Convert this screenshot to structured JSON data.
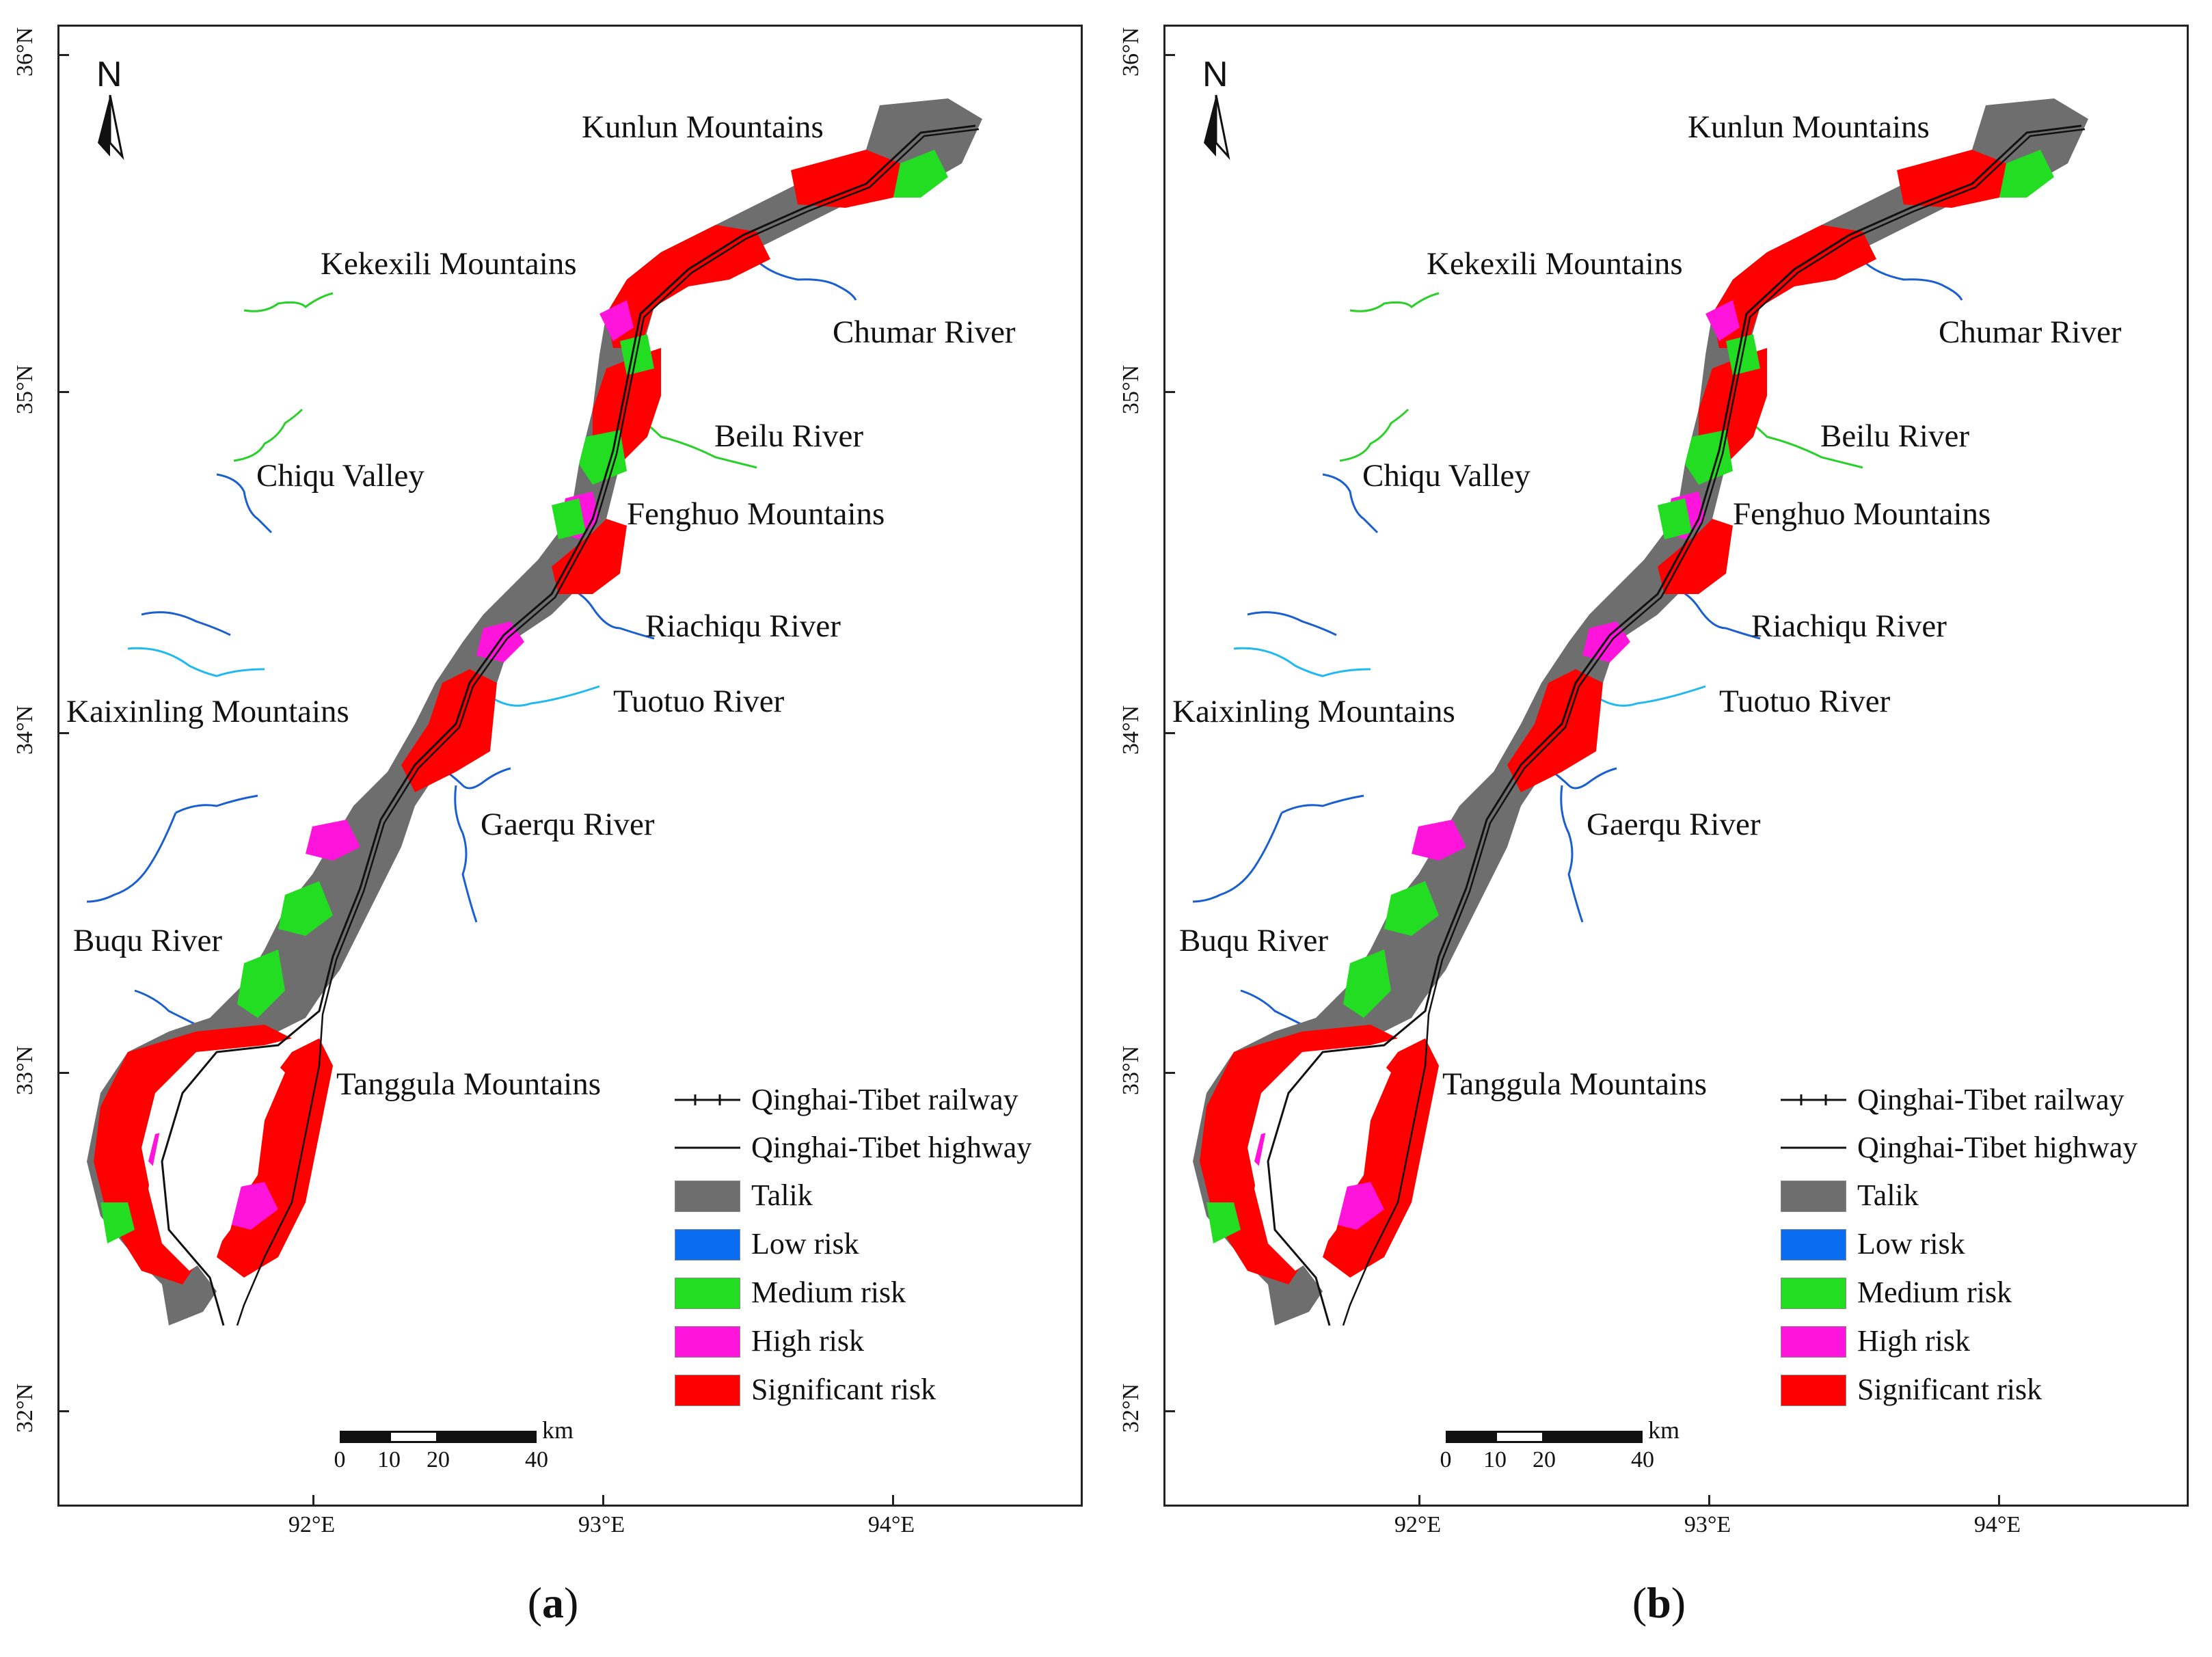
{
  "latitude_labels": [
    "36°N",
    "35°N",
    "34°N",
    "33°N",
    "32°N"
  ],
  "longitude_labels": [
    "92°E",
    "93°E",
    "94°E"
  ],
  "north_arrow": {
    "letter": "N",
    "icon": "north-arrow-icon"
  },
  "place_labels": {
    "kunlun": "Kunlun Mountains",
    "kekexili": "Kekexili Mountains",
    "chumar": "Chumar River",
    "beilu": "Beilu River",
    "chiqu": "Chiqu Valley",
    "fenghuo": "Fenghuo Mountains",
    "riachiqu": "Riachiqu River",
    "tuotuo": "Tuotuo River",
    "kaixinling": "Kaixinling Mountains",
    "gaerqu": "Gaerqu River",
    "buqu": "Buqu River",
    "tanggula": "Tanggula Mountains"
  },
  "legend": {
    "railway": "Qinghai-Tibet railway",
    "highway": "Qinghai-Tibet highway",
    "items": [
      {
        "label": "Talik",
        "color": "#6e6e6e"
      },
      {
        "label": "Low risk",
        "color": "#0a6cf0"
      },
      {
        "label": "Medium risk",
        "color": "#22dd22"
      },
      {
        "label": "High risk",
        "color": "#ff14dc"
      },
      {
        "label": "Significant risk",
        "color": "#ff0000"
      }
    ]
  },
  "scale_bar": {
    "ticks": [
      "0",
      "10",
      "20",
      "40"
    ],
    "unit": "km"
  },
  "panels": [
    {
      "id": "a",
      "open": "(",
      "letter": "a",
      "close": ")"
    },
    {
      "id": "b",
      "open": "(",
      "letter": "b",
      "close": ")"
    }
  ],
  "colors": {
    "talik": "#6e6e6e",
    "low": "#0a6cf0",
    "medium": "#22dd22",
    "high": "#ff14dc",
    "significant": "#ff0000",
    "river_dark": "#1a5fd0",
    "river_light": "#22b8f0",
    "river_green": "#2ad02a"
  }
}
